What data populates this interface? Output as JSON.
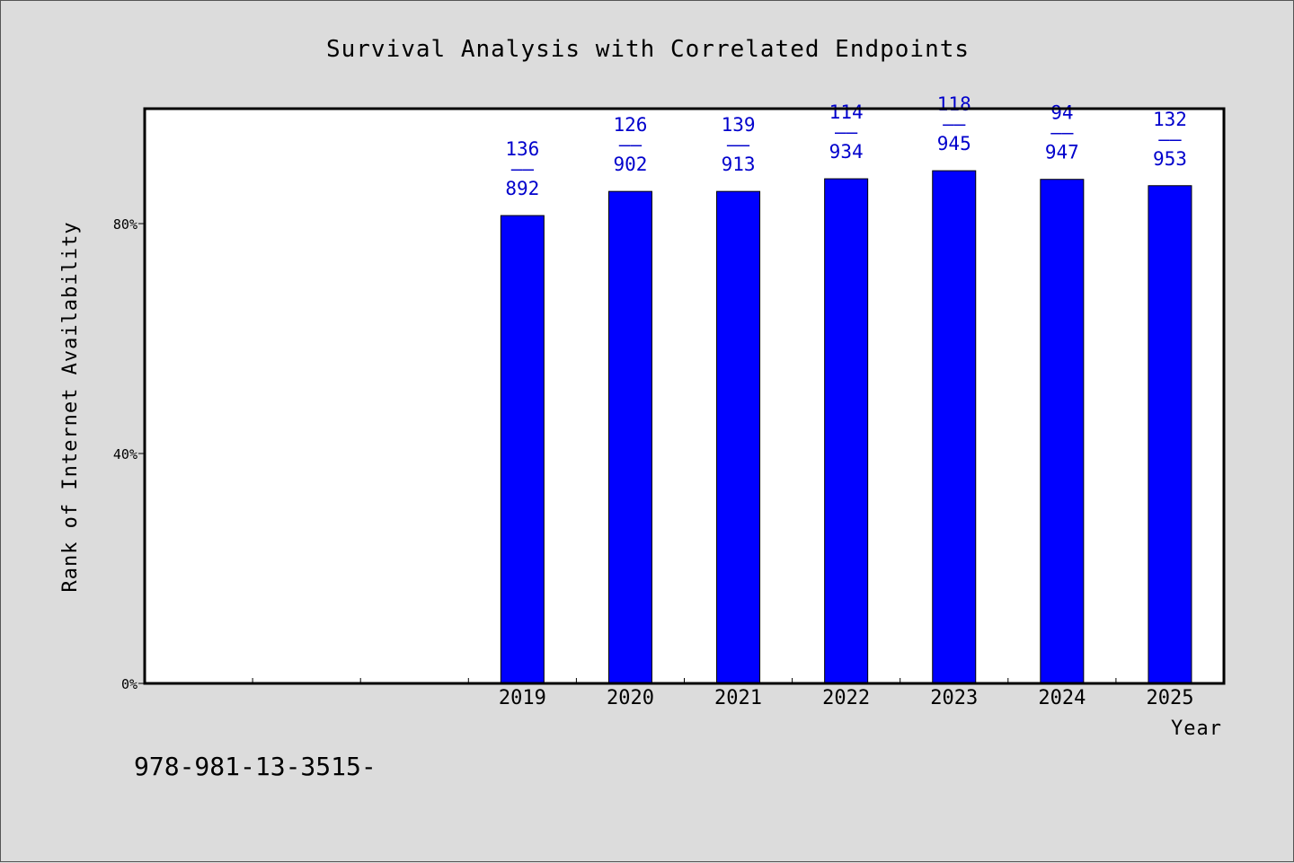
{
  "chart_data": {
    "type": "bar",
    "title": "Survival Analysis with Correlated Endpoints",
    "xlabel": "Year",
    "ylabel": "Rank of Internet Availability",
    "categories": [
      "",
      "",
      "",
      "2019",
      "2020",
      "2021",
      "2022",
      "2023",
      "2024",
      "2025"
    ],
    "values": [
      null,
      null,
      null,
      81.4,
      85.6,
      85.6,
      87.8,
      89.2,
      87.7,
      86.6
    ],
    "data_labels": [
      null,
      null,
      null,
      {
        "top": "136",
        "mid": "——",
        "bottom": "892"
      },
      {
        "top": "126",
        "mid": "——",
        "bottom": "902"
      },
      {
        "top": "139",
        "mid": "——",
        "bottom": "913"
      },
      {
        "top": "114",
        "mid": "——",
        "bottom": "934"
      },
      {
        "top": "118",
        "mid": "——",
        "bottom": "945"
      },
      {
        "top": "94",
        "mid": "——",
        "bottom": "947"
      },
      {
        "top": "132",
        "mid": "——",
        "bottom": "953"
      }
    ],
    "ylim": [
      0,
      100
    ],
    "yticks": [
      {
        "value": 0,
        "label": "0%"
      },
      {
        "value": 40,
        "label": "40%"
      },
      {
        "value": 80,
        "label": "80%"
      }
    ],
    "grid": false,
    "legend": "none"
  },
  "footer": {
    "text": "978-981-13-3515-"
  },
  "colors": {
    "bar_fill": "#0000ff",
    "bar_stroke": "#000000",
    "data_label": "#0000cc",
    "plot_background": "#ffffff",
    "page_background": "#dcdcdc"
  }
}
